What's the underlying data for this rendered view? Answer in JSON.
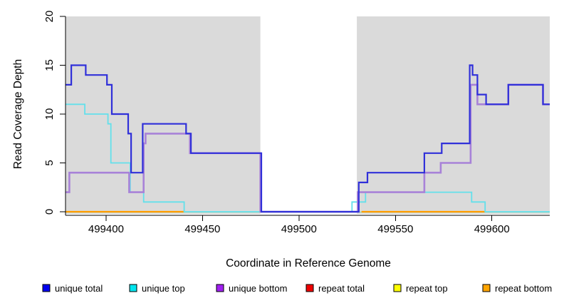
{
  "figure": {
    "xlabel": "Coordinate in Reference Genome",
    "ylabel": "Read Coverage Depth",
    "panel_bg": "#DADADA",
    "gap_band_color": "#FFFFFF",
    "axis_color": "#000000",
    "baseline_color": "#A3D6A3"
  },
  "chart_data": {
    "type": "line",
    "step": true,
    "title": "",
    "xlabel": "Coordinate in Reference Genome",
    "ylabel": "Read Coverage Depth",
    "xlim": [
      499379,
      499630
    ],
    "ylim": [
      0,
      20
    ],
    "x_ticks": [
      499400,
      499450,
      499500,
      499550,
      499600
    ],
    "y_ticks": [
      0,
      5,
      10,
      15,
      20
    ],
    "grid": false,
    "legend_position": "bottom",
    "gap_region": {
      "x0": 499480,
      "x1": 499530
    },
    "baseline_y": 0,
    "series": [
      {
        "name": "unique total",
        "legend_color": "#0000F0",
        "line_color": "#3030D9",
        "width": 2.2,
        "points": [
          [
            499379,
            13
          ],
          [
            499382,
            15
          ],
          [
            499389.5,
            14
          ],
          [
            499400.5,
            13
          ],
          [
            499403,
            10
          ],
          [
            499411.5,
            8
          ],
          [
            499413,
            4
          ],
          [
            499419,
            9
          ],
          [
            499441.5,
            8
          ],
          [
            499444,
            6
          ],
          [
            499480.5,
            0
          ],
          [
            499531,
            3
          ],
          [
            499535.5,
            4
          ],
          [
            499565,
            6
          ],
          [
            499574,
            7
          ],
          [
            499588.5,
            15
          ],
          [
            499590,
            14
          ],
          [
            499592.5,
            12
          ],
          [
            499597,
            11
          ],
          [
            499608.5,
            13
          ],
          [
            499626.5,
            11
          ]
        ],
        "end": 499630
      },
      {
        "name": "unique top",
        "legend_color": "#00E5EE",
        "line_color": "#63E0EB",
        "width": 1.8,
        "points": [
          [
            499379,
            11
          ],
          [
            499389,
            10
          ],
          [
            499401,
            9
          ],
          [
            499402.5,
            5
          ],
          [
            499412.5,
            2
          ],
          [
            499419.5,
            1
          ],
          [
            499440.5,
            0
          ],
          [
            499527.5,
            1
          ],
          [
            499534.5,
            2
          ],
          [
            499589.5,
            1
          ],
          [
            499596.5,
            0
          ]
        ],
        "end": 499630
      },
      {
        "name": "unique bottom",
        "legend_color": "#A020F0",
        "line_color": "#A882D8",
        "width": 2.6,
        "points": [
          [
            499379,
            2
          ],
          [
            499381,
            4
          ],
          [
            499412,
            2
          ],
          [
            499419.5,
            7
          ],
          [
            499420.5,
            8
          ],
          [
            499443.5,
            6
          ],
          [
            499480,
            0
          ],
          [
            499530.5,
            2
          ],
          [
            499565,
            4
          ],
          [
            499573.5,
            5
          ],
          [
            499589,
            13
          ],
          [
            499592.5,
            11
          ],
          [
            499608.5,
            13
          ],
          [
            499626.5,
            11
          ]
        ],
        "end": 499630
      },
      {
        "name": "repeat total",
        "legend_color": "#EE0000",
        "line_color": "#EE0000",
        "width": 1.8,
        "y_const": 0,
        "segments": [
          [
            499379,
            499440.5
          ],
          [
            499532.5,
            499596.5
          ]
        ]
      },
      {
        "name": "repeat top",
        "legend_color": "#FFFF00",
        "line_color": "#FFFF00",
        "width": 1.8,
        "y_const": 0,
        "segments": [
          [
            499379,
            499440.5
          ],
          [
            499532.5,
            499596.5
          ]
        ]
      },
      {
        "name": "repeat bottom",
        "legend_color": "#FFA500",
        "line_color": "#FF9D00",
        "width": 2.2,
        "y_const": 0,
        "segments": [
          [
            499379,
            499440.5
          ],
          [
            499532.5,
            499596.5
          ]
        ]
      }
    ]
  },
  "legend": {
    "item_x": [
      60,
      182,
      304,
      430,
      553,
      678
    ]
  }
}
